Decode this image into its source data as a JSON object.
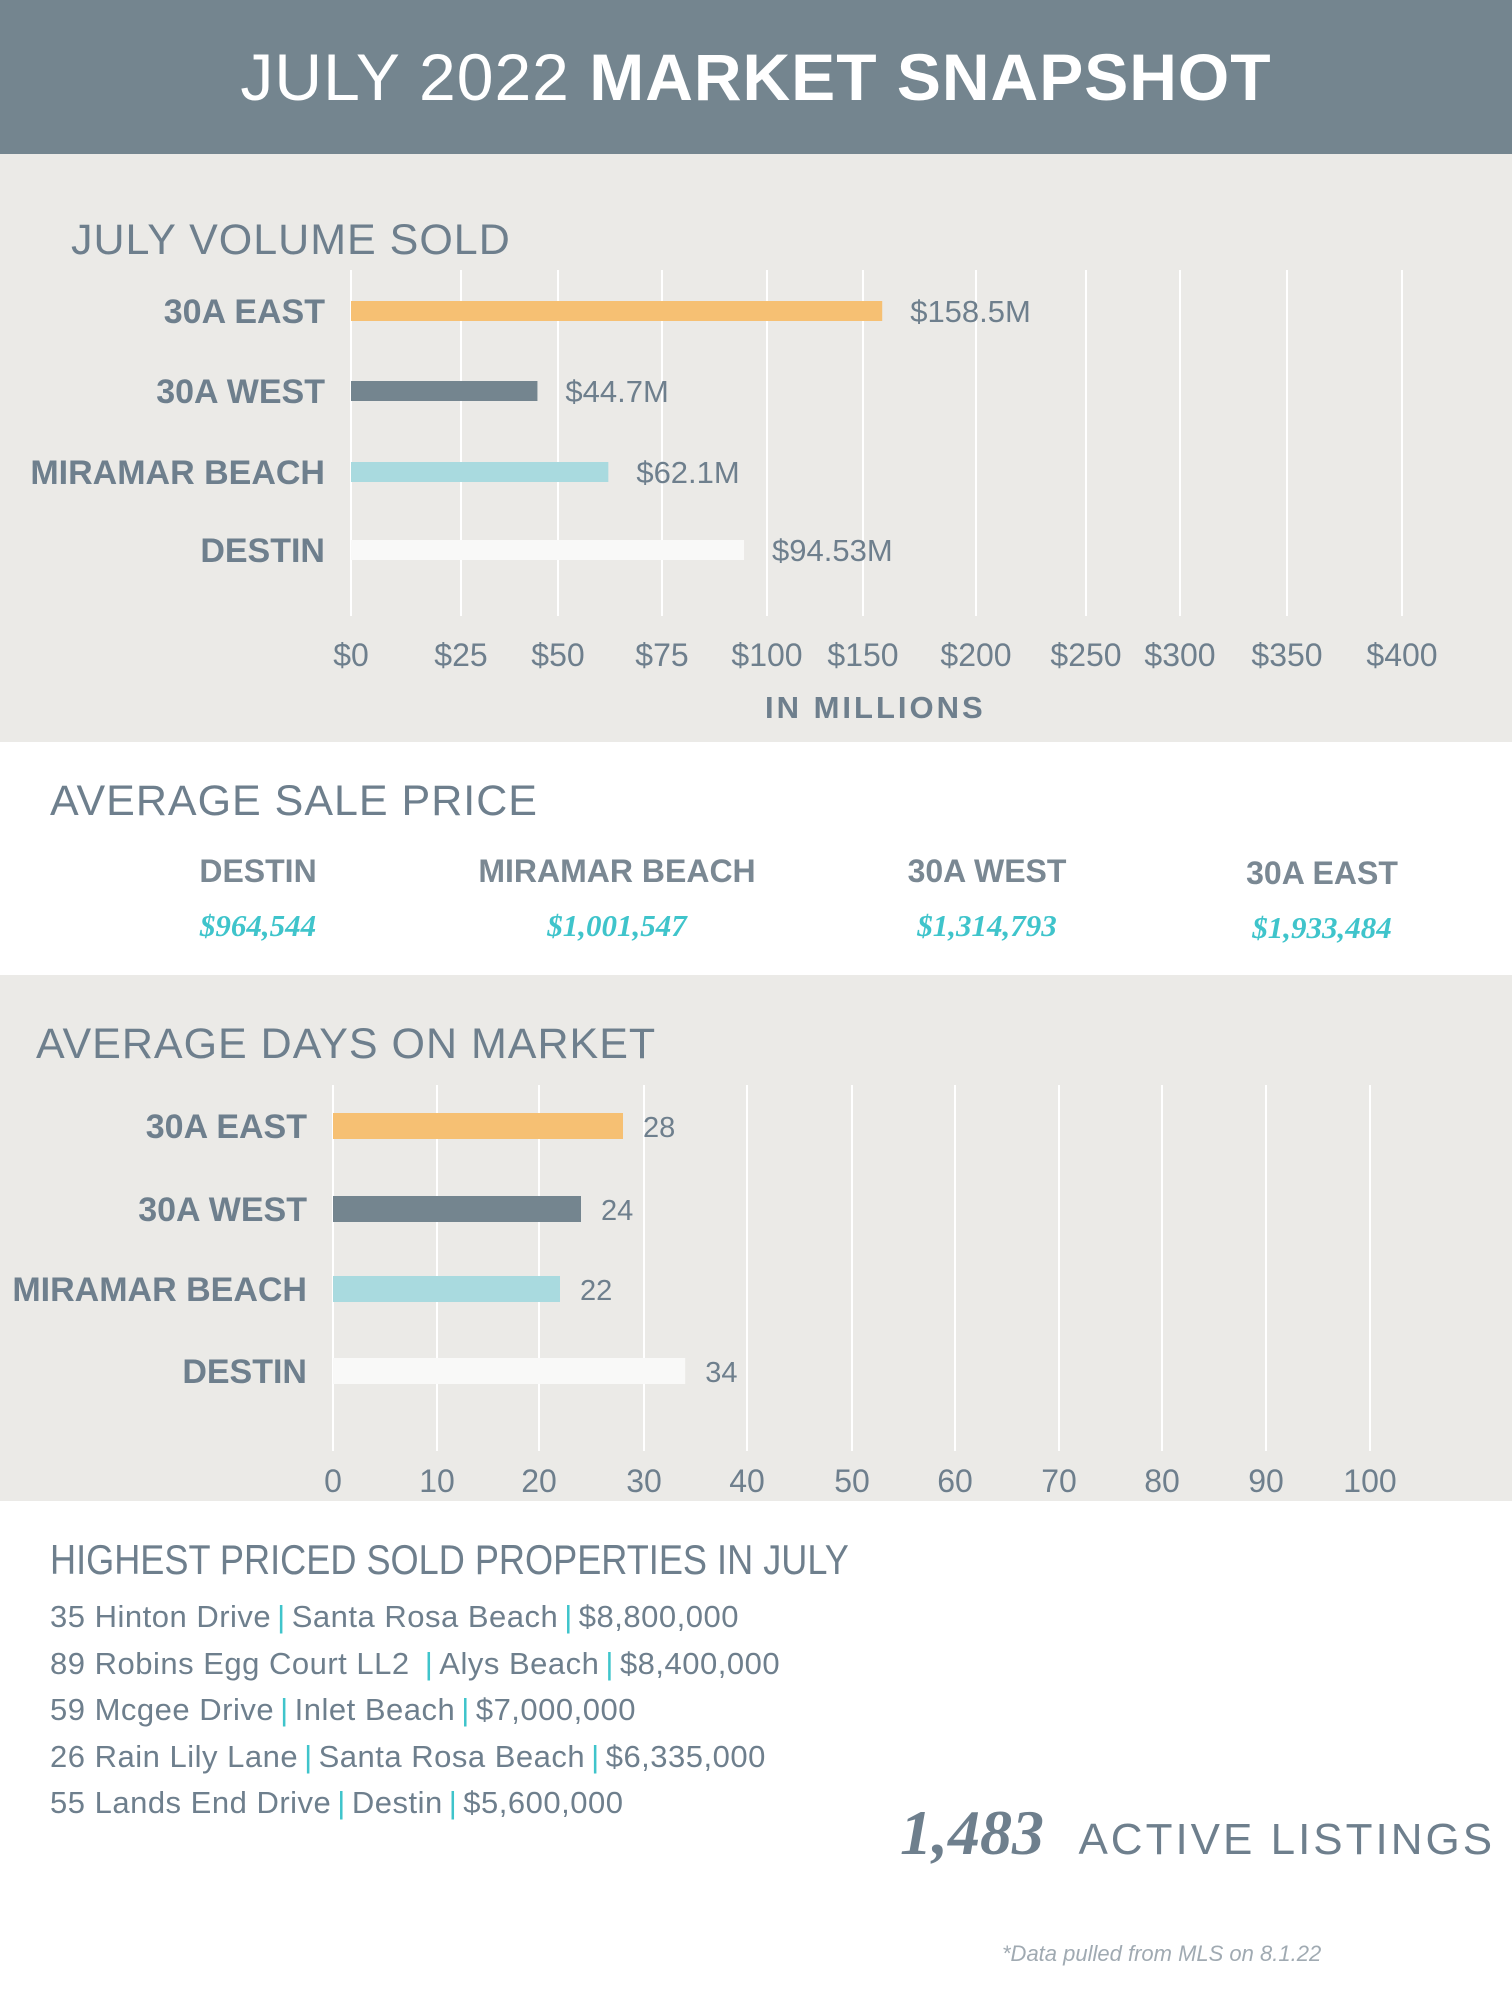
{
  "header": {
    "title_light": "JULY 2022",
    "title_bold": "MARKET SNAPSHOT"
  },
  "colors": {
    "header_bg": "#74858f",
    "band_bg": "#ebeae7",
    "orange": "#f6c073",
    "slate": "#74858f",
    "aqua": "#a9dadf",
    "white_bar": "#f9f9f8",
    "accent": "#3fc4cb"
  },
  "volume": {
    "title": "JULY VOLUME SOLD",
    "axis_title": "IN MILLIONS"
  },
  "avg_price": {
    "title": "AVERAGE SALE PRICE",
    "items": [
      {
        "area": "DESTIN",
        "price": "$964,544"
      },
      {
        "area": "MIRAMAR BEACH",
        "price": "$1,001,547"
      },
      {
        "area": "30A WEST",
        "price": "$1,314,793"
      },
      {
        "area": "30A EAST",
        "price": "$1,933,484"
      }
    ]
  },
  "days": {
    "title": "AVERAGE DAYS ON MARKET"
  },
  "properties": {
    "title": "HIGHEST PRICED SOLD PROPERTIES IN JULY",
    "items": [
      {
        "address": "35 Hinton Drive",
        "area": "Santa Rosa Beach",
        "price": "$8,800,000"
      },
      {
        "address": "89 Robins Egg Court LL2",
        "area": "Alys Beach",
        "price": "$8,400,000"
      },
      {
        "address": "59 Mcgee Drive",
        "area": "Inlet Beach",
        "price": "$7,000,000"
      },
      {
        "address": "26 Rain Lily Lane",
        "area": "Santa Rosa Beach",
        "price": "$6,335,000"
      },
      {
        "address": "55 Lands End Drive",
        "area": "Destin",
        "price": "$5,600,000"
      }
    ]
  },
  "active": {
    "count": "1,483",
    "label": "ACTIVE LISTINGS"
  },
  "footnote": "*Data pulled from MLS on 8.1.22",
  "chart_data": [
    {
      "type": "bar",
      "orientation": "horizontal",
      "title": "JULY VOLUME SOLD",
      "xlabel": "IN MILLIONS",
      "categories": [
        "30A EAST",
        "30A WEST",
        "MIRAMAR BEACH",
        "DESTIN"
      ],
      "values": [
        158.5,
        44.7,
        62.1,
        94.53
      ],
      "data_labels": [
        "$158.5M",
        "$44.7M",
        "$62.1M",
        "$94.53M"
      ],
      "bar_colors": [
        "#f6c073",
        "#74858f",
        "#a9dadf",
        "#f9f9f8"
      ],
      "x_ticks": [
        "$0",
        "$25",
        "$50",
        "$75",
        "$100",
        "$150",
        "$200",
        "$250",
        "$300",
        "$350",
        "$400"
      ],
      "x_tick_values": [
        0,
        25,
        50,
        75,
        100,
        150,
        200,
        250,
        300,
        350,
        400
      ],
      "xlim": [
        0,
        400
      ],
      "grid": true
    },
    {
      "type": "bar",
      "orientation": "horizontal",
      "title": "AVERAGE DAYS ON MARKET",
      "categories": [
        "30A EAST",
        "30A WEST",
        "MIRAMAR BEACH",
        "DESTIN"
      ],
      "values": [
        28,
        24,
        22,
        34
      ],
      "data_labels": [
        "28",
        "24",
        "22",
        "34"
      ],
      "bar_colors": [
        "#f6c073",
        "#74858f",
        "#a9dadf",
        "#f9f9f8"
      ],
      "x_ticks": [
        "0",
        "10",
        "20",
        "30",
        "40",
        "50",
        "60",
        "70",
        "80",
        "90",
        "100"
      ],
      "x_tick_values": [
        0,
        10,
        20,
        30,
        40,
        50,
        60,
        70,
        80,
        90,
        100
      ],
      "xlim": [
        0,
        100
      ],
      "grid": true
    }
  ]
}
